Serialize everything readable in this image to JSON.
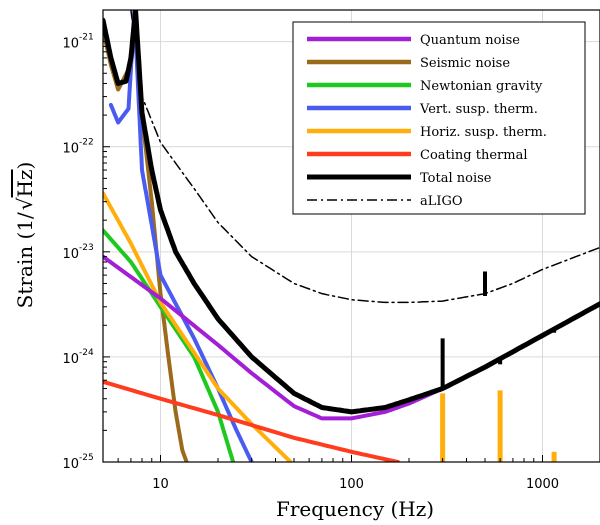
{
  "chart_data": {
    "type": "line",
    "title": "",
    "xlabel": "Frequency (Hz)",
    "ylabel_prefix": "Strain (1/",
    "ylabel_radicand": "Hz",
    "ylabel_suffix": ")",
    "x_scale": "log",
    "y_scale": "log",
    "xlim": [
      5,
      2000
    ],
    "ylim": [
      1e-25,
      2e-21
    ],
    "grid": true,
    "legend_position": "top-right",
    "x_ticks": [
      {
        "value": 10,
        "label": "10"
      },
      {
        "value": 100,
        "label": "100"
      },
      {
        "value": 1000,
        "label": "1000"
      }
    ],
    "y_ticks": [
      {
        "value": 1e-25,
        "mantissa": "10",
        "exp": "-25"
      },
      {
        "value": 1e-24,
        "mantissa": "10",
        "exp": "-24"
      },
      {
        "value": 1e-23,
        "mantissa": "10",
        "exp": "-23"
      },
      {
        "value": 1e-22,
        "mantissa": "10",
        "exp": "-22"
      },
      {
        "value": 1e-21,
        "mantissa": "10",
        "exp": "-21"
      }
    ],
    "series": [
      {
        "name": "Quantum noise",
        "color": "#a21fd6",
        "dash": "solid",
        "points": [
          [
            5,
            9e-24
          ],
          [
            10,
            3.6e-24
          ],
          [
            20,
            1.3e-24
          ],
          [
            30,
            7e-25
          ],
          [
            50,
            3.4e-25
          ],
          [
            70,
            2.6e-25
          ],
          [
            100,
            2.6e-25
          ],
          [
            150,
            3e-25
          ],
          [
            200,
            3.6e-25
          ],
          [
            300,
            5e-25
          ],
          [
            500,
            8e-25
          ],
          [
            1000,
            1.6e-24
          ],
          [
            2000,
            3.2e-24
          ]
        ]
      },
      {
        "name": "Seismic noise",
        "color": "#9b6a1b",
        "dash": "solid",
        "points": [
          [
            5,
            1.3e-21
          ],
          [
            5.5,
            6e-22
          ],
          [
            6,
            3.5e-22
          ],
          [
            7,
            6e-22
          ],
          [
            7.4,
            1.5e-21
          ],
          [
            8,
            2e-22
          ],
          [
            9,
            3e-23
          ],
          [
            10,
            4e-24
          ],
          [
            11,
            1e-24
          ],
          [
            12,
            3e-25
          ],
          [
            13,
            1.3e-25
          ],
          [
            13.7,
            1e-25
          ]
        ]
      },
      {
        "name": "Newtonian gravity",
        "color": "#1ec81e",
        "dash": "solid",
        "points": [
          [
            5,
            1.6e-23
          ],
          [
            7,
            8e-24
          ],
          [
            10,
            3e-24
          ],
          [
            15,
            1e-24
          ],
          [
            20,
            3e-25
          ],
          [
            24,
            1e-25
          ]
        ]
      },
      {
        "name": "Vert. susp. therm.",
        "color": "#4a5cf0",
        "dash": "solid",
        "points": [
          [
            5.5,
            2.5e-22
          ],
          [
            6,
            1.7e-22
          ],
          [
            6.8,
            2.3e-22
          ],
          [
            7.3,
            2e-21
          ],
          [
            8,
            6e-23
          ],
          [
            9,
            1.8e-23
          ],
          [
            10,
            6e-24
          ],
          [
            15,
            1.5e-24
          ],
          [
            20,
            5e-25
          ],
          [
            25,
            2e-25
          ],
          [
            30,
            1e-25
          ]
        ]
      },
      {
        "name": "Horiz. susp. therm.",
        "color": "#ffae0c",
        "dash": "solid",
        "points": [
          [
            5,
            3.6e-23
          ],
          [
            7,
            1.2e-23
          ],
          [
            10,
            3.3e-24
          ],
          [
            15,
            1.1e-24
          ],
          [
            20,
            5e-25
          ],
          [
            30,
            2.3e-25
          ],
          [
            48,
            1e-25
          ]
        ]
      },
      {
        "name": "Coating thermal",
        "color": "#ff3c1e",
        "dash": "solid",
        "points": [
          [
            5,
            5.8e-25
          ],
          [
            10,
            4e-25
          ],
          [
            20,
            2.8e-25
          ],
          [
            50,
            1.7e-25
          ],
          [
            100,
            1.25e-25
          ],
          [
            175,
            1e-25
          ]
        ]
      },
      {
        "name": "Total noise",
        "color": "#000000",
        "dash": "solid",
        "points": [
          [
            5,
            1.6e-21
          ],
          [
            5.5,
            7e-22
          ],
          [
            6,
            4e-22
          ],
          [
            6.6,
            4.2e-22
          ],
          [
            7,
            7e-22
          ],
          [
            7.4,
            2e-21
          ],
          [
            8,
            2.1e-22
          ],
          [
            9,
            6e-23
          ],
          [
            10,
            2.5e-23
          ],
          [
            12,
            1e-23
          ],
          [
            15,
            5e-24
          ],
          [
            20,
            2.3e-24
          ],
          [
            30,
            1e-24
          ],
          [
            50,
            4.5e-25
          ],
          [
            70,
            3.3e-25
          ],
          [
            100,
            3e-25
          ],
          [
            150,
            3.3e-25
          ],
          [
            200,
            3.9e-25
          ],
          [
            300,
            5e-25
          ],
          [
            500,
            8e-25
          ],
          [
            1000,
            1.6e-24
          ],
          [
            2000,
            3.2e-24
          ]
        ]
      },
      {
        "name": "aLIGO",
        "color": "#000000",
        "dash": "dashdot",
        "points": [
          [
            7,
            2e-21
          ],
          [
            8,
            3e-22
          ],
          [
            10,
            1.1e-22
          ],
          [
            15,
            4e-23
          ],
          [
            20,
            1.9e-23
          ],
          [
            30,
            9e-24
          ],
          [
            50,
            5e-24
          ],
          [
            70,
            4e-24
          ],
          [
            100,
            3.5e-24
          ],
          [
            150,
            3.3e-24
          ],
          [
            200,
            3.3e-24
          ],
          [
            300,
            3.4e-24
          ],
          [
            500,
            4e-24
          ],
          [
            700,
            5e-24
          ],
          [
            1000,
            6.8e-24
          ],
          [
            2000,
            1.1e-23
          ]
        ]
      }
    ],
    "spikes": [
      {
        "color": "#ffae0c",
        "x": 300,
        "y_low": 1e-25,
        "y_high": 4.5e-25
      },
      {
        "color": "#ffae0c",
        "x": 600,
        "y_low": 1e-25,
        "y_high": 4.8e-25
      },
      {
        "color": "#ffae0c",
        "x": 1150,
        "y_low": 1e-25,
        "y_high": 1.25e-25
      },
      {
        "color": "#000000",
        "x": 300,
        "y_low": 5e-25,
        "y_high": 1.5e-24
      },
      {
        "color": "#000000",
        "x": 600,
        "y_low": 8.5e-25,
        "y_high": 1e-24
      },
      {
        "color": "#000000",
        "x": 1150,
        "y_low": 1.7e-24,
        "y_high": 1.9e-24
      },
      {
        "color": "#000000",
        "x": 500,
        "y_low": 3.8e-24,
        "y_high": 6.5e-24
      }
    ]
  }
}
